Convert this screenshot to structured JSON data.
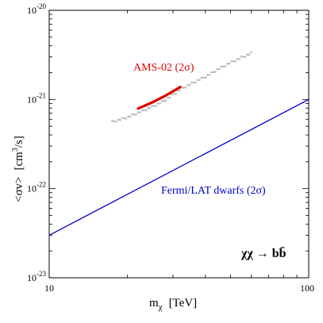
{
  "chart_data": {
    "type": "line",
    "xlabel_main": "m",
    "xlabel_sub": "χ",
    "xlabel_unit": "[TeV]",
    "ylabel_main": "<σv>",
    "ylabel_unit": "[cm",
    "ylabel_unit_sup": "3",
    "ylabel_unit_end": "/s]",
    "xscale": "log",
    "yscale": "log",
    "xlim": [
      10,
      100
    ],
    "ylim": [
      1e-23,
      1e-20
    ],
    "x_ticks": [
      {
        "value": 10,
        "label": "10"
      },
      {
        "value": 100,
        "label": "100"
      }
    ],
    "y_ticks": [
      {
        "value": 1e-23,
        "base": "10",
        "exp": "-23"
      },
      {
        "value": 1e-22,
        "base": "10",
        "exp": "-22"
      },
      {
        "value": 1e-21,
        "base": "10",
        "exp": "-21"
      },
      {
        "value": 1e-20,
        "base": "10",
        "exp": "-20"
      }
    ],
    "process_label": "χχ → bb̄",
    "series": [
      {
        "name": "Fermi/LAT dwarfs (2σ)",
        "color": "#0000cc",
        "style": "line",
        "x": [
          10,
          100
        ],
        "y": [
          3e-23,
          1e-21
        ]
      },
      {
        "name": "",
        "color": "#bbbbbb",
        "style": "dots",
        "x": [
          17.5,
          20,
          22,
          25,
          28,
          32,
          36,
          40,
          45,
          50,
          55,
          60
        ],
        "y": [
          5.6e-22,
          6.3e-22,
          7.1e-22,
          8.3e-22,
          9.8e-22,
          1.3e-21,
          1.55e-21,
          1.8e-21,
          2.2e-21,
          2.6e-21,
          2.95e-21,
          3.3e-21
        ]
      },
      {
        "name": "AMS-02 (2σ)",
        "color": "#dd0000",
        "style": "band",
        "x": [
          22,
          25,
          28,
          32
        ],
        "y": [
          7.9e-22,
          9.3e-22,
          1.1e-21,
          1.38e-21
        ]
      }
    ]
  }
}
